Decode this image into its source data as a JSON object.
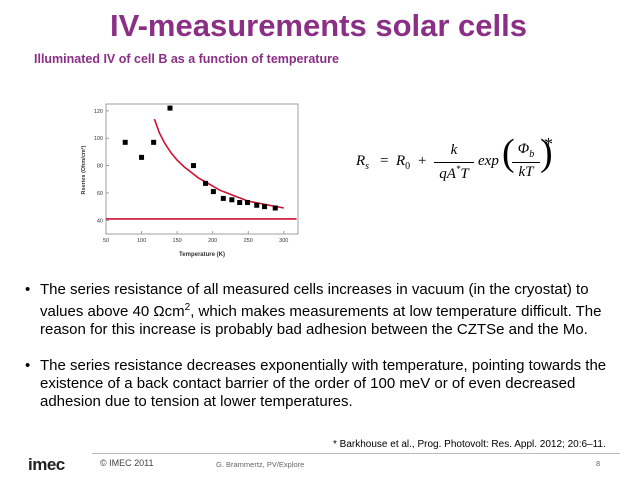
{
  "slide": {
    "title": "IV-measurements solar cells",
    "subtitle": "Illuminated IV of cell B as a function of temperature",
    "title_color": "#8b2f86"
  },
  "chart_data": {
    "type": "scatter",
    "title": "",
    "xlabel": "Temperature (K)",
    "ylabel": "Rseries (Ohm/cm²)",
    "xlim": [
      50,
      320
    ],
    "ylim": [
      30,
      125
    ],
    "x_ticks": [
      "50",
      "100",
      "150",
      "200",
      "250",
      "300"
    ],
    "y_ticks": [
      "40",
      "60",
      "80",
      "100",
      "120"
    ],
    "series": [
      {
        "kind": "points",
        "color": "#000000",
        "x": [
          77,
          100,
          117,
          140,
          173,
          190,
          201,
          215,
          227,
          238,
          249,
          262,
          273,
          288
        ],
        "y": [
          97,
          86,
          97,
          122,
          80,
          67,
          61,
          56,
          55,
          53,
          53,
          51,
          50,
          49
        ]
      },
      {
        "kind": "fit",
        "color": "#cc1133",
        "x": [
          118,
          125,
          133,
          142,
          150,
          160,
          170,
          180,
          190,
          200,
          210,
          220,
          230,
          240,
          250,
          260,
          270,
          280,
          290,
          300
        ],
        "y": [
          114,
          104,
          96,
          89,
          84,
          79,
          75,
          71,
          68,
          65,
          62,
          60,
          58,
          56,
          54,
          53,
          52,
          51,
          50,
          49
        ]
      },
      {
        "kind": "baseline",
        "color": "#cc1133",
        "x": [
          50,
          318
        ],
        "y": [
          41,
          41
        ]
      }
    ]
  },
  "formula": {
    "lhs": "R",
    "lhs_sub": "s",
    "eq": "=",
    "r0": "R",
    "r0_sub": "0",
    "plus": "+",
    "num": "k",
    "den_main": "qA",
    "den_sup": "*",
    "den_tail": "T",
    "exp": "exp",
    "phi": "Φ",
    "phi_sub": "b",
    "kt": "kT",
    "star": "*"
  },
  "bullets": [
    {
      "marker": "•",
      "pre": "The series resistance of all measured cells increases in vacuum (in the cryostat) to values above 40 ",
      "unit_symbol": "Ω",
      "unit": "cm",
      "unit_sup": "2",
      "post": ", which makes measurements at low temperature difficult. The reason for this increase is probably bad adhesion between the CZTSe and the Mo."
    },
    {
      "marker": "•",
      "text": "The series resistance decreases exponentially with temperature, pointing towards the existence of a back contact barrier of the order of 100 meV or of even decreased adhesion due to tension at lower temperatures."
    }
  ],
  "footnote": "* Barkhouse et al., Prog. Photovolt: Res. Appl. 2012; 20:6–11.",
  "footer": {
    "logo": "imec",
    "copyright": "© IMEC 2011",
    "author": "G. Brammertz, PV/Explore",
    "page": "8"
  }
}
